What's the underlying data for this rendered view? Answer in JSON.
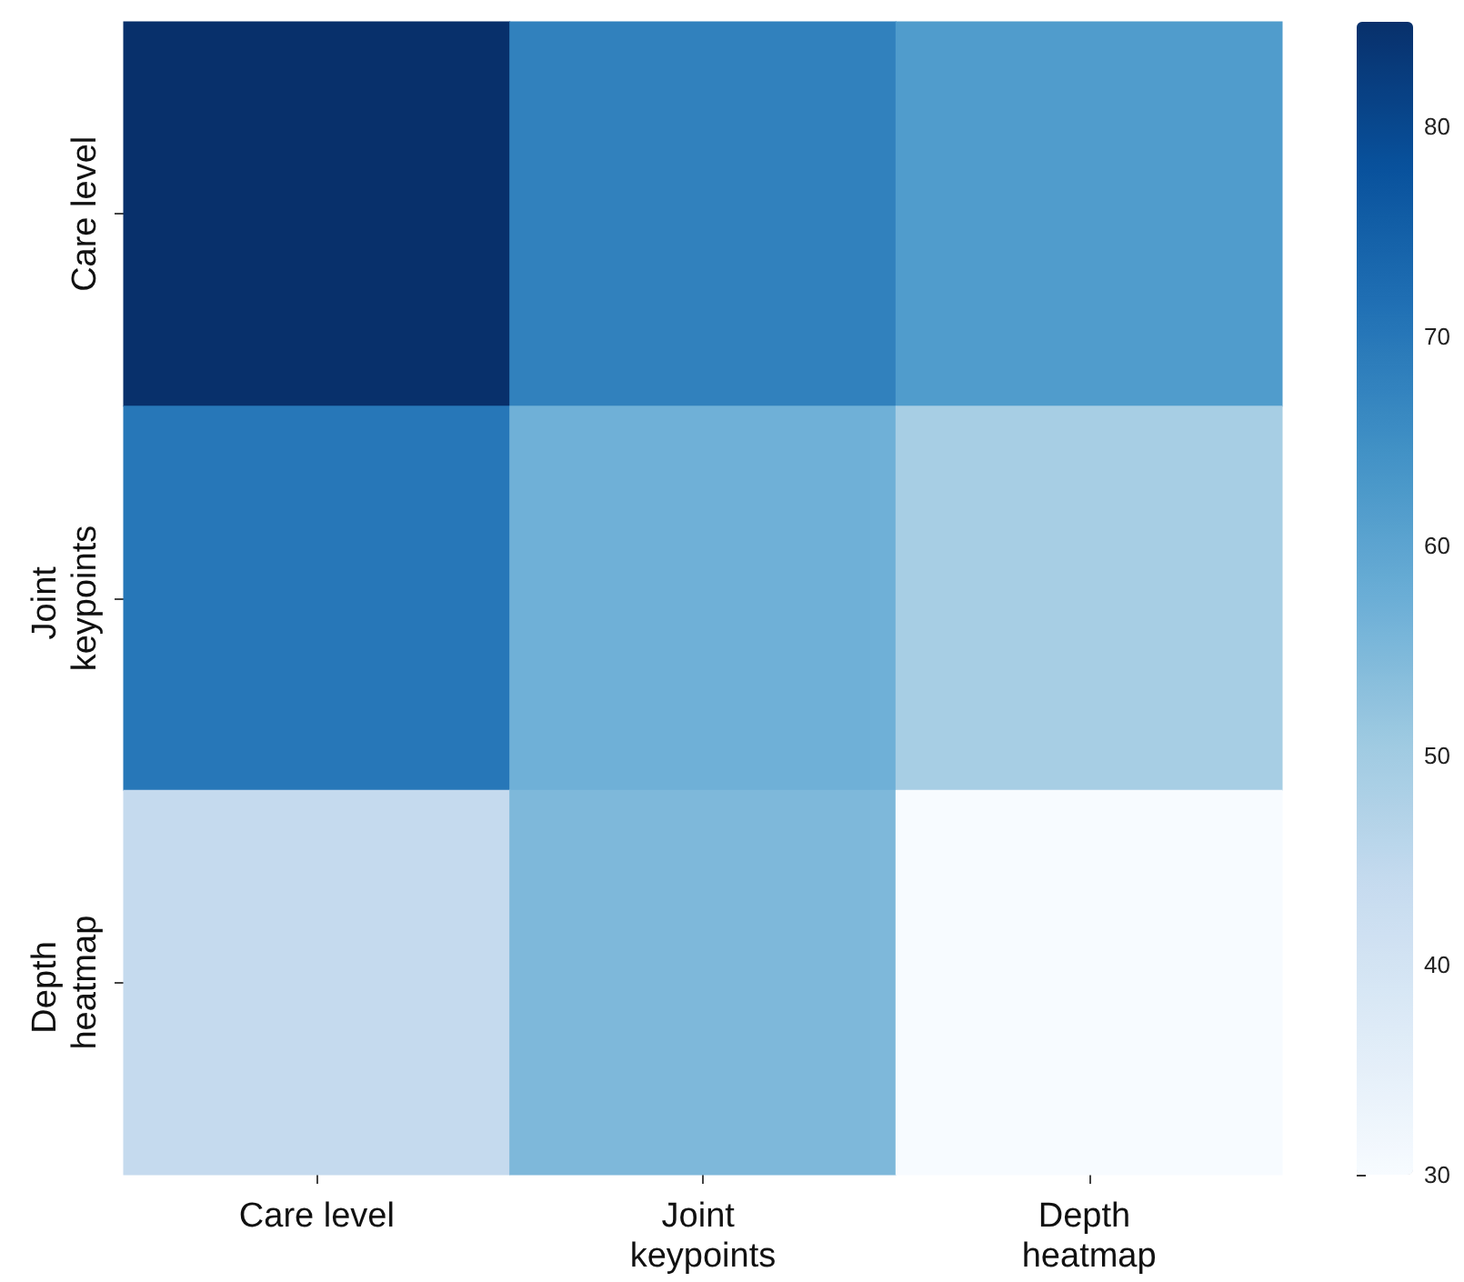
{
  "chart_data": {
    "type": "heatmap",
    "categories": [
      "Care level",
      "Joint keypoints",
      "Depth heatmap"
    ],
    "y_categories": [
      "Care level",
      "Joint keypoints",
      "Depth heatmap"
    ],
    "cells": [
      [
        85,
        68,
        62
      ],
      [
        70,
        57,
        49
      ],
      [
        44,
        55,
        30
      ]
    ],
    "clim": [
      30,
      85
    ],
    "cticks": [
      30,
      40,
      50,
      60,
      70,
      80
    ]
  }
}
